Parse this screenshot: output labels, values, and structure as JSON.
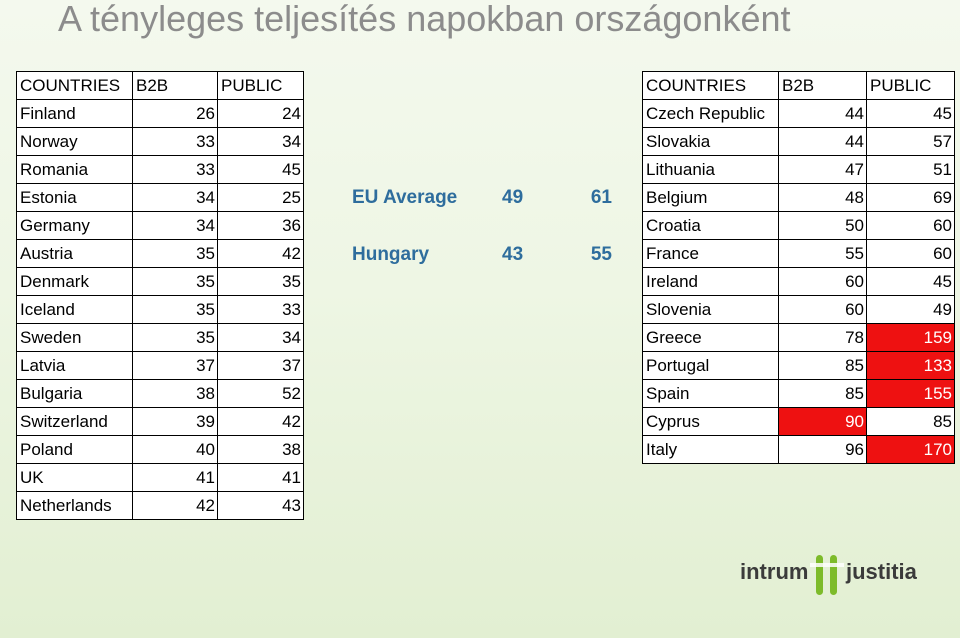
{
  "title": "A tényleges teljesítés napokban országonként",
  "left_table": {
    "headers": [
      "COUNTRIES",
      "B2B",
      "PUBLIC"
    ],
    "rows": [
      {
        "country": "Finland",
        "b2b": "26",
        "public": "24"
      },
      {
        "country": "Norway",
        "b2b": "33",
        "public": "34"
      },
      {
        "country": "Romania",
        "b2b": "33",
        "public": "45"
      },
      {
        "country": "Estonia",
        "b2b": "34",
        "public": "25"
      },
      {
        "country": "Germany",
        "b2b": "34",
        "public": "36"
      },
      {
        "country": "Austria",
        "b2b": "35",
        "public": "42"
      },
      {
        "country": "Denmark",
        "b2b": "35",
        "public": "35"
      },
      {
        "country": "Iceland",
        "b2b": "35",
        "public": "33"
      },
      {
        "country": "Sweden",
        "b2b": "35",
        "public": "34"
      },
      {
        "country": "Latvia",
        "b2b": "37",
        "public": "37"
      },
      {
        "country": "Bulgaria",
        "b2b": "38",
        "public": "52"
      },
      {
        "country": "Switzerland",
        "b2b": "39",
        "public": "42"
      },
      {
        "country": "Poland",
        "b2b": "40",
        "public": "38"
      },
      {
        "country": "UK",
        "b2b": "41",
        "public": "41"
      },
      {
        "country": "Netherlands",
        "b2b": "42",
        "public": "43"
      }
    ]
  },
  "summary": {
    "eu": {
      "label": "EU Average",
      "b2b": "49",
      "public": "61"
    },
    "hungary": {
      "label": "Hungary",
      "b2b": "43",
      "public": "55"
    },
    "color": "#2e6d9d"
  },
  "right_table": {
    "headers": [
      "COUNTRIES",
      "B2B",
      "PUBLIC"
    ],
    "rows": [
      {
        "country": "Czech Republic",
        "b2b": "44",
        "public": "45",
        "b2b_red": false,
        "public_red": false
      },
      {
        "country": "Slovakia",
        "b2b": "44",
        "public": "57",
        "b2b_red": false,
        "public_red": false
      },
      {
        "country": "Lithuania",
        "b2b": "47",
        "public": "51",
        "b2b_red": false,
        "public_red": false
      },
      {
        "country": "Belgium",
        "b2b": "48",
        "public": "69",
        "b2b_red": false,
        "public_red": false
      },
      {
        "country": "Croatia",
        "b2b": "50",
        "public": "60",
        "b2b_red": false,
        "public_red": false
      },
      {
        "country": "France",
        "b2b": "55",
        "public": "60",
        "b2b_red": false,
        "public_red": false
      },
      {
        "country": "Ireland",
        "b2b": "60",
        "public": "45",
        "b2b_red": false,
        "public_red": false
      },
      {
        "country": "Slovenia",
        "b2b": "60",
        "public": "49",
        "b2b_red": false,
        "public_red": false
      },
      {
        "country": "Greece",
        "b2b": "78",
        "public": "159",
        "b2b_red": false,
        "public_red": true
      },
      {
        "country": "Portugal",
        "b2b": "85",
        "public": "133",
        "b2b_red": false,
        "public_red": true
      },
      {
        "country": "Spain",
        "b2b": "85",
        "public": "155",
        "b2b_red": false,
        "public_red": true
      },
      {
        "country": "Cyprus",
        "b2b": "90",
        "public": "85",
        "b2b_red": true,
        "public_red": false
      },
      {
        "country": "Italy",
        "b2b": "96",
        "public": "170",
        "b2b_red": false,
        "public_red": true
      }
    ],
    "highlight_color": "#ee1111"
  },
  "logo": {
    "word1": "intrum",
    "word2": "justitia",
    "mark_color": "#7dbb2a"
  }
}
